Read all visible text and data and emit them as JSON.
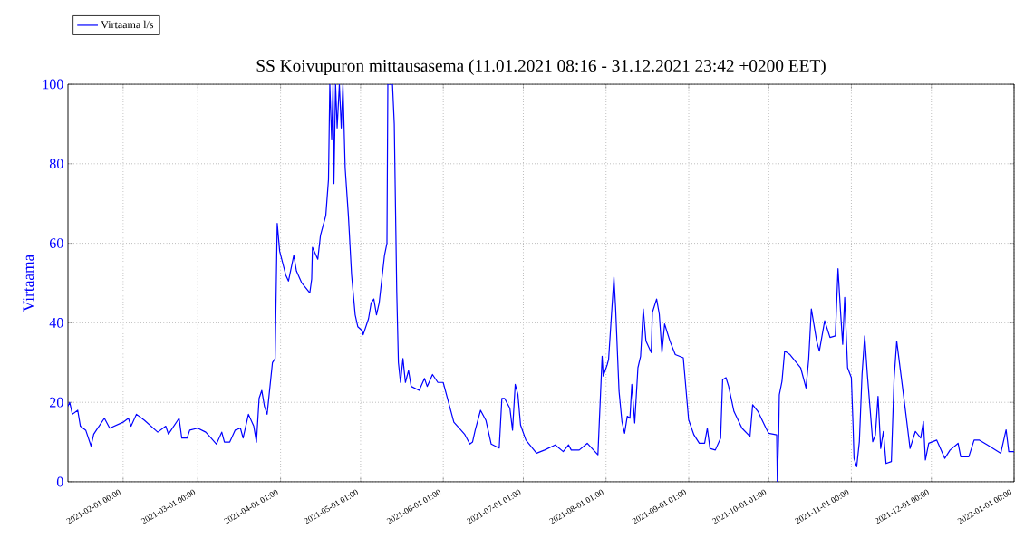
{
  "chart_data": {
    "type": "line",
    "title": "SS Koivupuron mittausasema (11.01.2021 08:16 - 31.12.2021 23:42 +0200 EET)",
    "ylabel": "Virtaama",
    "xlim": [
      "2021-01-11T08:16",
      "2022-01-01T00:00"
    ],
    "ylim": [
      0,
      100
    ],
    "yticks": [
      0,
      20,
      40,
      60,
      80,
      100
    ],
    "xticks": [
      {
        "value": "2021-02-01T00:00",
        "label": "2021-02-01 00:00"
      },
      {
        "value": "2021-03-01T00:00",
        "label": "2021-03-01 00:00"
      },
      {
        "value": "2021-04-01T01:00",
        "label": "2021-04-01 01:00"
      },
      {
        "value": "2021-05-01T01:00",
        "label": "2021-05-01 01:00"
      },
      {
        "value": "2021-06-01T01:00",
        "label": "2021-06-01 01:00"
      },
      {
        "value": "2021-07-01T01:00",
        "label": "2021-07-01 01:00"
      },
      {
        "value": "2021-08-01T01:00",
        "label": "2021-08-01 01:00"
      },
      {
        "value": "2021-09-01T01:00",
        "label": "2021-09-01 01:00"
      },
      {
        "value": "2021-10-01T01:00",
        "label": "2021-10-01 01:00"
      },
      {
        "value": "2021-11-01T00:00",
        "label": "2021-11-01 00:00"
      },
      {
        "value": "2021-12-01T00:00",
        "label": "2021-12-01 00:00"
      },
      {
        "value": "2022-01-01T00:00",
        "label": "2022-01-01 00:00"
      }
    ],
    "grid": true,
    "legend": "top left",
    "series": [
      {
        "name": "Virtaama l/s",
        "color": "#0000ff",
        "x": [
          "2021-01-11T08:16",
          "2021-01-12",
          "2021-01-13",
          "2021-01-15",
          "2021-01-16",
          "2021-01-18",
          "2021-01-20",
          "2021-01-21",
          "2021-01-22",
          "2021-01-25",
          "2021-01-27",
          "2021-02-01",
          "2021-02-03",
          "2021-02-04",
          "2021-02-06",
          "2021-02-09",
          "2021-02-14",
          "2021-02-17",
          "2021-02-18",
          "2021-02-22",
          "2021-02-23",
          "2021-02-25",
          "2021-02-26",
          "2021-03-01",
          "2021-03-04",
          "2021-03-06",
          "2021-03-08",
          "2021-03-10",
          "2021-03-11",
          "2021-03-13",
          "2021-03-15",
          "2021-03-17",
          "2021-03-18",
          "2021-03-20",
          "2021-03-22",
          "2021-03-23",
          "2021-03-24",
          "2021-03-25",
          "2021-03-26",
          "2021-03-27",
          "2021-03-29",
          "2021-03-30",
          "2021-03-30T19:00",
          "2021-03-31T17:00",
          "2021-04-03",
          "2021-04-04",
          "2021-04-06",
          "2021-04-07",
          "2021-04-09",
          "2021-04-12",
          "2021-04-12T17:00",
          "2021-04-13",
          "2021-04-15",
          "2021-04-16",
          "2021-04-18",
          "2021-04-19",
          "2021-04-19T12:00",
          "2021-04-20T05:00",
          "2021-04-20T17:00",
          "2021-04-21T01:00",
          "2021-04-21T16:00",
          "2021-04-22T06:00",
          "2021-04-23T02:00",
          "2021-04-23T19:00",
          "2021-04-24T10:00",
          "2021-04-25T06:00",
          "2021-04-26T11:00",
          "2021-04-27T16:00",
          "2021-04-29",
          "2021-04-30",
          "2021-05-01T16:00",
          "2021-05-02",
          "2021-05-04",
          "2021-05-05",
          "2021-05-06",
          "2021-05-07",
          "2021-05-08",
          "2021-05-10",
          "2021-05-10T22:00",
          "2021-05-11T06:00",
          "2021-05-13",
          "2021-05-13T16:00",
          "2021-05-14T14:00",
          "2021-05-15T05:00",
          "2021-05-16",
          "2021-05-16T22:00",
          "2021-05-17T20:00",
          "2021-05-19",
          "2021-05-20",
          "2021-05-23",
          "2021-05-25",
          "2021-05-26",
          "2021-05-28",
          "2021-05-30",
          "2021-06-01",
          "2021-06-03",
          "2021-06-05",
          "2021-06-09",
          "2021-06-11",
          "2021-06-12",
          "2021-06-13",
          "2021-06-15",
          "2021-06-17",
          "2021-06-19",
          "2021-06-22",
          "2021-06-23",
          "2021-06-24",
          "2021-06-26",
          "2021-06-27",
          "2021-06-28",
          "2021-06-29",
          "2021-06-30",
          "2021-07-02",
          "2021-07-06",
          "2021-07-09",
          "2021-07-13",
          "2021-07-16",
          "2021-07-18",
          "2021-07-19",
          "2021-07-22",
          "2021-07-25",
          "2021-07-29",
          "2021-07-30T14:00",
          "2021-07-31",
          "2021-08-01T12:00",
          "2021-08-02",
          "2021-08-04",
          "2021-08-04T15:00",
          "2021-08-05T22:00",
          "2021-08-07",
          "2021-08-08",
          "2021-08-09",
          "2021-08-10",
          "2021-08-10T17:00",
          "2021-08-11T19:00",
          "2021-08-13",
          "2021-08-14",
          "2021-08-15",
          "2021-08-16",
          "2021-08-18",
          "2021-08-18T10:00",
          "2021-08-20",
          "2021-08-21",
          "2021-08-22",
          "2021-08-23",
          "2021-08-25",
          "2021-08-27",
          "2021-08-30",
          "2021-09-01",
          "2021-09-03",
          "2021-09-05",
          "2021-09-07",
          "2021-09-08",
          "2021-09-09",
          "2021-09-11",
          "2021-09-13",
          "2021-09-13T18:00",
          "2021-09-15",
          "2021-09-16",
          "2021-09-18",
          "2021-09-21",
          "2021-09-24",
          "2021-09-25",
          "2021-09-27",
          "2021-09-30",
          "2021-10-01",
          "2021-10-04",
          "2021-10-04T06:00",
          "2021-10-04T18:00",
          "2021-10-05",
          "2021-10-06",
          "2021-10-07",
          "2021-10-09",
          "2021-10-13",
          "2021-10-15",
          "2021-10-16",
          "2021-10-17",
          "2021-10-19",
          "2021-10-20",
          "2021-10-22",
          "2021-10-24",
          "2021-10-26",
          "2021-10-27",
          "2021-10-28",
          "2021-10-28T18:00",
          "2021-10-29T12:00",
          "2021-10-30T14:00",
          "2021-11-01",
          "2021-11-01T15:00",
          "2021-11-02",
          "2021-11-03",
          "2021-11-04",
          "2021-11-05",
          "2021-11-06",
          "2021-11-07",
          "2021-11-09",
          "2021-11-10",
          "2021-11-11",
          "2021-11-12",
          "2021-11-13",
          "2021-11-14",
          "2021-11-16",
          "2021-11-17",
          "2021-11-18",
          "2021-11-21",
          "2021-11-23",
          "2021-11-25",
          "2021-11-27",
          "2021-11-28",
          "2021-11-28T18:00",
          "2021-11-30",
          "2021-12-03",
          "2021-12-06",
          "2021-12-08",
          "2021-12-11",
          "2021-12-12",
          "2021-12-15",
          "2021-12-17",
          "2021-12-19",
          "2021-12-22",
          "2021-12-27",
          "2021-12-29",
          "2021-12-30",
          "2021-12-31T23:42"
        ],
        "values": [
          19,
          20,
          17,
          18,
          14,
          13,
          9,
          12,
          13,
          16,
          13.5,
          15,
          16,
          14,
          17,
          15.5,
          12.5,
          14,
          12,
          16,
          11,
          11,
          13,
          13.5,
          12.5,
          11,
          9.5,
          12.5,
          10,
          10,
          13,
          13.5,
          11,
          17,
          14,
          10,
          21,
          23,
          19,
          17,
          30,
          31,
          65,
          58,
          52,
          50.5,
          57,
          53,
          50,
          47.5,
          51,
          59,
          56,
          62,
          67,
          76,
          100,
          86,
          100,
          75,
          100,
          89,
          100,
          89,
          100,
          79,
          67,
          52,
          42,
          39,
          38,
          37,
          41,
          45,
          46,
          42,
          45,
          57,
          60,
          100,
          100,
          90,
          48,
          30,
          25,
          31,
          25,
          28,
          24,
          23,
          26,
          24,
          27,
          25,
          25,
          20,
          15,
          12,
          9.5,
          10,
          13,
          18,
          15.5,
          9.5,
          8.5,
          21,
          21,
          18.5,
          13,
          24.5,
          22,
          14.3,
          10.5,
          7.2,
          8,
          9.3,
          7.6,
          9.3,
          8,
          8,
          9.7,
          6.8,
          31.6,
          26.6,
          29.5,
          30.8,
          51.5,
          43.9,
          22.8,
          15.2,
          12.2,
          16.5,
          16,
          24.5,
          14.8,
          28.7,
          31.6,
          43.5,
          35.4,
          32.5,
          42.6,
          46,
          42.2,
          32.5,
          39.7,
          35.4,
          32,
          31.2,
          15.6,
          11.8,
          9.7,
          9.7,
          13.5,
          8.4,
          8,
          11,
          25.7,
          26.2,
          24,
          17.7,
          13.5,
          11.4,
          19.4,
          17.7,
          13.5,
          12.2,
          11.8,
          0,
          11.8,
          21.9,
          25.3,
          32.9,
          32,
          28.7,
          23.6,
          30.8,
          43.5,
          35.4,
          32.9,
          40.5,
          36.3,
          36.7,
          53.6,
          42.2,
          34.6,
          46.4,
          28.7,
          26.2,
          14.3,
          5.9,
          3.8,
          10.1,
          27,
          36.7,
          27,
          10.1,
          11.8,
          21.5,
          8.4,
          12.7,
          4.6,
          5.1,
          25.7,
          35.4,
          19.4,
          8.4,
          12.7,
          11,
          15.2,
          5.5,
          9.7,
          10.5,
          5.9,
          8,
          9.7,
          6.3,
          6.3,
          10.5,
          10.5,
          9.3,
          7.2,
          13.1,
          7.6,
          7.6
        ]
      }
    ]
  }
}
